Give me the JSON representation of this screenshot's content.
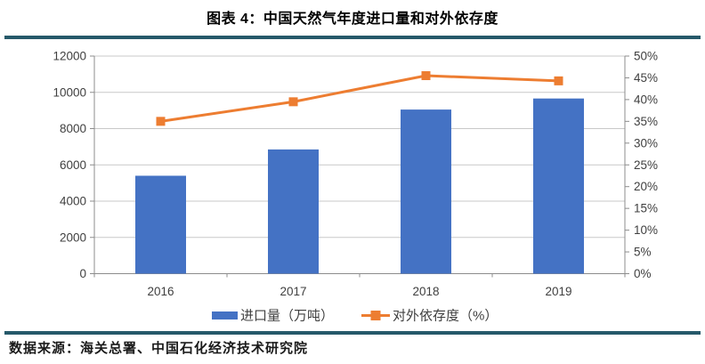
{
  "title": "图表 4：中国天然气年度进口量和对外依存度",
  "source": "数据来源：海关总署、中国石化经济技术研究院",
  "colors": {
    "bar": "#4472C4",
    "line": "#ED7D31",
    "rule": "#26596A",
    "grid": "#C8C8C8",
    "axis": "#8C8C8C",
    "label": "#3F3F3F"
  },
  "chart_data": {
    "type": "bar",
    "subtype": "bar+line dual axis",
    "categories": [
      "2016",
      "2017",
      "2018",
      "2019"
    ],
    "series": [
      {
        "name": "进口量（万吨）",
        "type": "bar",
        "axis": "left",
        "values": [
          5400,
          6850,
          9050,
          9660
        ]
      },
      {
        "name": "对外依存度（%）",
        "type": "line",
        "axis": "right",
        "values": [
          35,
          39.5,
          45.5,
          44.3
        ]
      }
    ],
    "left_axis": {
      "min": 0,
      "max": 12000,
      "step": 2000,
      "labels": [
        "0",
        "2000",
        "4000",
        "6000",
        "8000",
        "10000",
        "12000"
      ]
    },
    "right_axis": {
      "min": 0,
      "max": 50,
      "step": 5,
      "labels": [
        "0%",
        "5%",
        "10%",
        "15%",
        "20%",
        "25%",
        "30%",
        "35%",
        "40%",
        "45%",
        "50%"
      ]
    },
    "grid": true,
    "legend_position": "bottom"
  }
}
